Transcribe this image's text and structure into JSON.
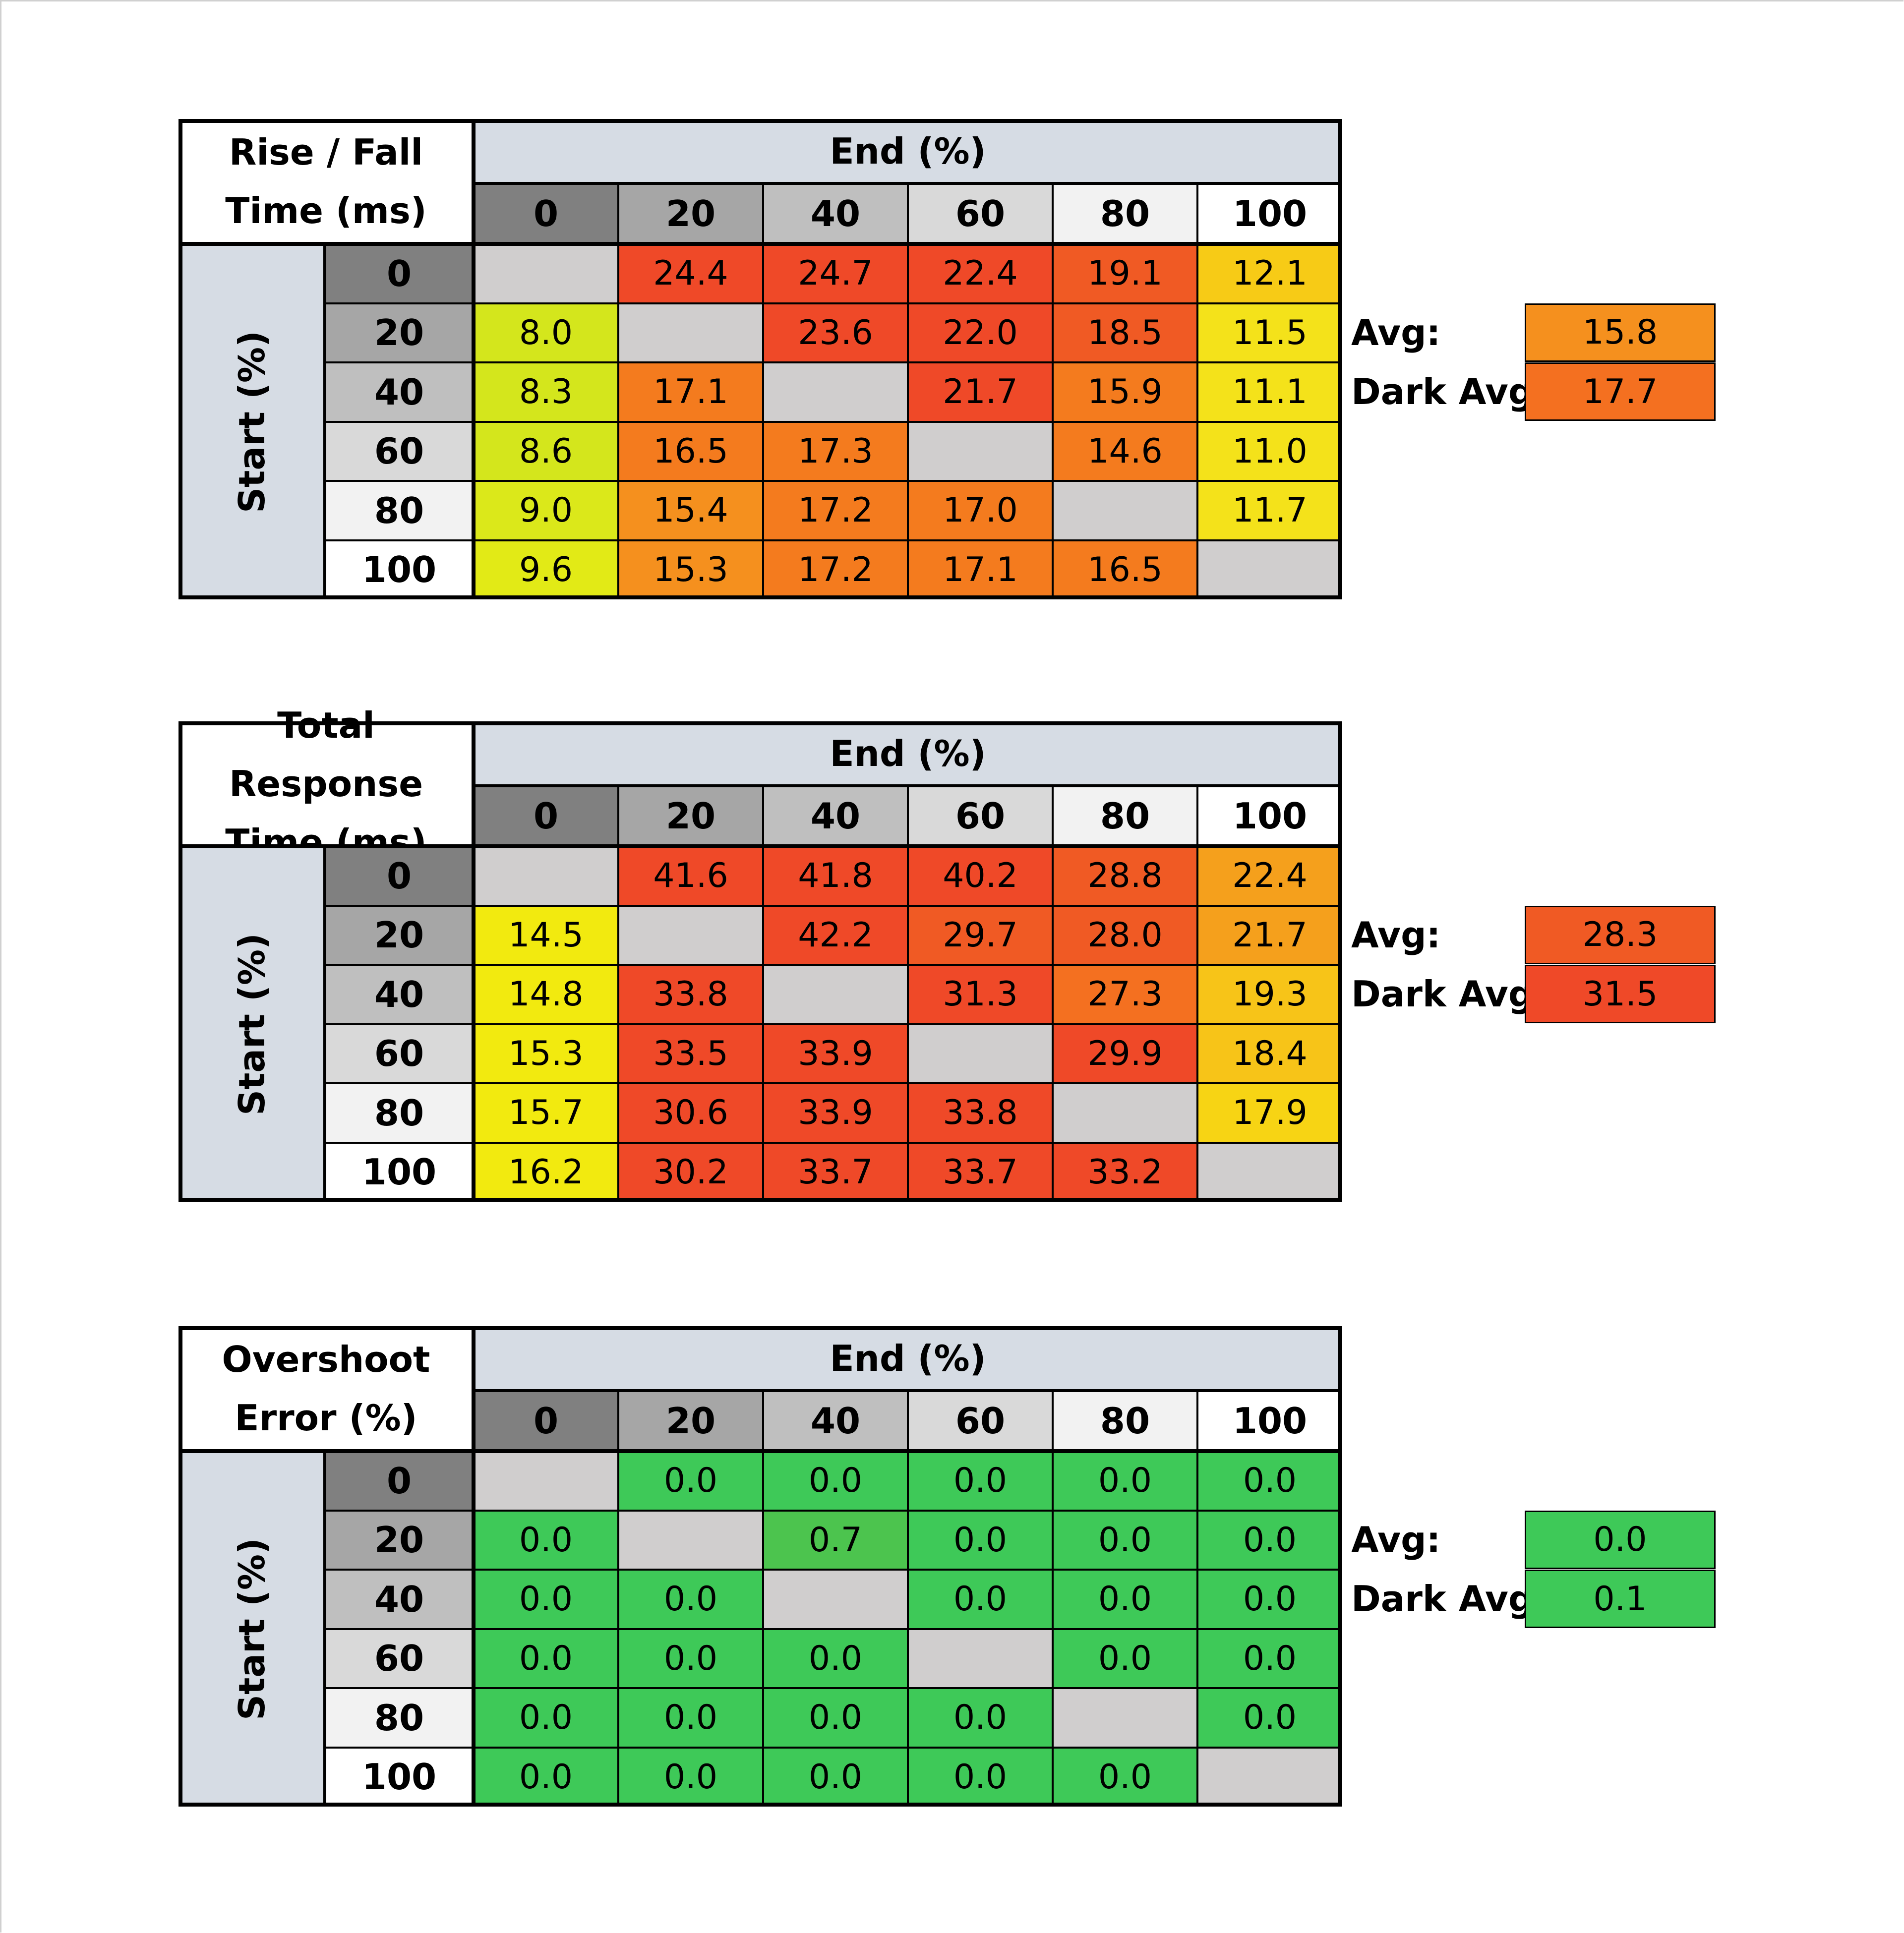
{
  "chart_data": [
    {
      "type": "table",
      "title_lines": [
        "Rise / Fall",
        "Time (ms)"
      ],
      "column_header": "End (%)",
      "row_header": "Start (%)",
      "end_values": [
        "0",
        "20",
        "40",
        "60",
        "80",
        "100"
      ],
      "start_values": [
        "0",
        "20",
        "40",
        "60",
        "80",
        "100"
      ],
      "cells": [
        [
          "",
          "24.4",
          "24.7",
          "22.4",
          "19.1",
          "12.1"
        ],
        [
          "8.0",
          "",
          "23.6",
          "22.0",
          "18.5",
          "11.5"
        ],
        [
          "8.3",
          "17.1",
          "",
          "21.7",
          "15.9",
          "11.1"
        ],
        [
          "8.6",
          "16.5",
          "17.3",
          "",
          "14.6",
          "11.0"
        ],
        [
          "9.0",
          "15.4",
          "17.2",
          "17.0",
          "",
          "11.7"
        ],
        [
          "9.6",
          "15.3",
          "17.2",
          "17.1",
          "16.5",
          ""
        ]
      ],
      "colors": [
        [
          "#d0cece",
          "#ef4928",
          "#ef4928",
          "#ef4928",
          "#f05a24",
          "#f7cb16"
        ],
        [
          "#d4e61c",
          "#d0cece",
          "#ef4928",
          "#ef4928",
          "#f05a24",
          "#f4e21a"
        ],
        [
          "#d4e61c",
          "#f47b1e",
          "#d0cece",
          "#ef4928",
          "#f47b1e",
          "#f4e21a"
        ],
        [
          "#d4e61c",
          "#f47b1e",
          "#f47b1e",
          "#d0cece",
          "#f47b1e",
          "#f4e21a"
        ],
        [
          "#dbe81a",
          "#f5901e",
          "#f47b1e",
          "#f47b1e",
          "#d0cece",
          "#f4e21a"
        ],
        [
          "#e2ea16",
          "#f5901e",
          "#f47b1e",
          "#f47b1e",
          "#f47b1e",
          "#d0cece"
        ]
      ],
      "summary": [
        {
          "label": "Avg:",
          "value": "15.8",
          "color": "#f5901e"
        },
        {
          "label": "Dark Avg:",
          "value": "17.7",
          "color": "#f47020"
        }
      ]
    },
    {
      "type": "table",
      "title_lines": [
        "Total Response",
        "Time (ms)"
      ],
      "column_header": "End (%)",
      "row_header": "Start (%)",
      "end_values": [
        "0",
        "20",
        "40",
        "60",
        "80",
        "100"
      ],
      "start_values": [
        "0",
        "20",
        "40",
        "60",
        "80",
        "100"
      ],
      "cells": [
        [
          "",
          "41.6",
          "41.8",
          "40.2",
          "28.8",
          "22.4"
        ],
        [
          "14.5",
          "",
          "42.2",
          "29.7",
          "28.0",
          "21.7"
        ],
        [
          "14.8",
          "33.8",
          "",
          "31.3",
          "27.3",
          "19.3"
        ],
        [
          "15.3",
          "33.5",
          "33.9",
          "",
          "29.9",
          "18.4"
        ],
        [
          "15.7",
          "30.6",
          "33.9",
          "33.8",
          "",
          "17.9"
        ],
        [
          "16.2",
          "30.2",
          "33.7",
          "33.7",
          "33.2",
          ""
        ]
      ],
      "colors": [
        [
          "#d0cece",
          "#ef4928",
          "#ef4928",
          "#ef4928",
          "#f05a24",
          "#f5a01c"
        ],
        [
          "#f2ea0f",
          "#d0cece",
          "#ef4928",
          "#f05a24",
          "#f05a24",
          "#f5a01c"
        ],
        [
          "#f2ea0f",
          "#ef4928",
          "#d0cece",
          "#ef4928",
          "#f47020",
          "#f7c418"
        ],
        [
          "#f2ea0f",
          "#ef4928",
          "#ef4928",
          "#d0cece",
          "#ef4928",
          "#f7c418"
        ],
        [
          "#f2ea0f",
          "#ef4928",
          "#ef4928",
          "#ef4928",
          "#d0cece",
          "#f7d414"
        ],
        [
          "#f2ea0f",
          "#ef4928",
          "#ef4928",
          "#ef4928",
          "#ef4928",
          "#d0cece"
        ]
      ],
      "summary": [
        {
          "label": "Avg:",
          "value": "28.3",
          "color": "#f05a24"
        },
        {
          "label": "Dark Avg:",
          "value": "31.5",
          "color": "#ef4928"
        }
      ]
    },
    {
      "type": "table",
      "title_lines": [
        "Overshoot",
        "Error (%)"
      ],
      "column_header": "End (%)",
      "row_header": "Start (%)",
      "end_values": [
        "0",
        "20",
        "40",
        "60",
        "80",
        "100"
      ],
      "start_values": [
        "0",
        "20",
        "40",
        "60",
        "80",
        "100"
      ],
      "cells": [
        [
          "",
          "0.0",
          "0.0",
          "0.0",
          "0.0",
          "0.0"
        ],
        [
          "0.0",
          "",
          "0.7",
          "0.0",
          "0.0",
          "0.0"
        ],
        [
          "0.0",
          "0.0",
          "",
          "0.0",
          "0.0",
          "0.0"
        ],
        [
          "0.0",
          "0.0",
          "0.0",
          "",
          "0.0",
          "0.0"
        ],
        [
          "0.0",
          "0.0",
          "0.0",
          "0.0",
          "",
          "0.0"
        ],
        [
          "0.0",
          "0.0",
          "0.0",
          "0.0",
          "0.0",
          ""
        ]
      ],
      "colors": [
        [
          "#d0cece",
          "#3ec958",
          "#3ec958",
          "#3ec958",
          "#3ec958",
          "#3ec958"
        ],
        [
          "#3ec958",
          "#d0cece",
          "#4cc44e",
          "#3ec958",
          "#3ec958",
          "#3ec958"
        ],
        [
          "#3ec958",
          "#3ec958",
          "#d0cece",
          "#3ec958",
          "#3ec958",
          "#3ec958"
        ],
        [
          "#3ec958",
          "#3ec958",
          "#3ec958",
          "#d0cece",
          "#3ec958",
          "#3ec958"
        ],
        [
          "#3ec958",
          "#3ec958",
          "#3ec958",
          "#3ec958",
          "#d0cece",
          "#3ec958"
        ],
        [
          "#3ec958",
          "#3ec958",
          "#3ec958",
          "#3ec958",
          "#3ec958",
          "#d0cece"
        ]
      ],
      "summary": [
        {
          "label": "Avg:",
          "value": "0.0",
          "color": "#3ec958"
        },
        {
          "label": "Dark Avg:",
          "value": "0.1",
          "color": "#3ec958"
        }
      ]
    }
  ],
  "header_colors": [
    "#808080",
    "#a6a6a6",
    "#bfbfbf",
    "#d9d9d9",
    "#f2f2f2",
    "#ffffff"
  ],
  "header_band_color": "#d6dce4"
}
